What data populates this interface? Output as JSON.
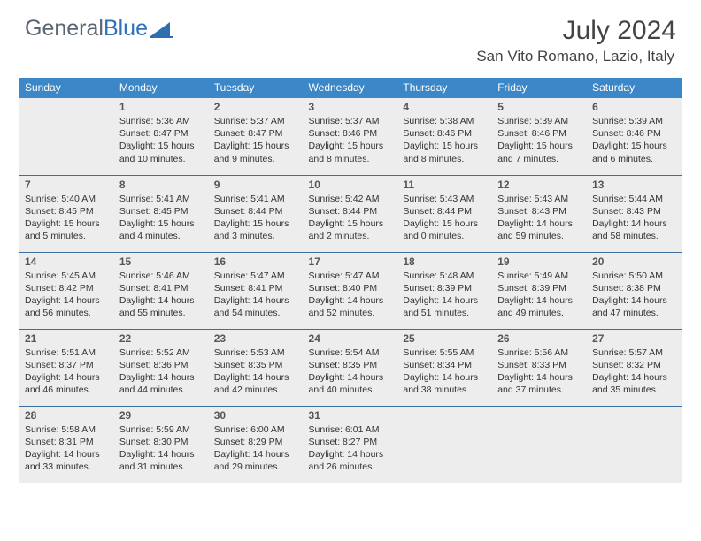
{
  "brand": {
    "part1": "General",
    "part2": "Blue"
  },
  "title": "July 2024",
  "location": "San Vito Romano, Lazio, Italy",
  "colors": {
    "header_bg": "#3c87c7",
    "header_text": "#ffffff",
    "cell_bg": "#ededed",
    "row_border": "#3c6fa0",
    "brand_gray": "#5a6673",
    "brand_blue": "#2f72b8",
    "logo_fill": "#2f6eb0"
  },
  "weekdays": [
    "Sunday",
    "Monday",
    "Tuesday",
    "Wednesday",
    "Thursday",
    "Friday",
    "Saturday"
  ],
  "weeks": [
    [
      null,
      {
        "d": "1",
        "sr": "5:36 AM",
        "ss": "8:47 PM",
        "dl": "15 hours and 10 minutes."
      },
      {
        "d": "2",
        "sr": "5:37 AM",
        "ss": "8:47 PM",
        "dl": "15 hours and 9 minutes."
      },
      {
        "d": "3",
        "sr": "5:37 AM",
        "ss": "8:46 PM",
        "dl": "15 hours and 8 minutes."
      },
      {
        "d": "4",
        "sr": "5:38 AM",
        "ss": "8:46 PM",
        "dl": "15 hours and 8 minutes."
      },
      {
        "d": "5",
        "sr": "5:39 AM",
        "ss": "8:46 PM",
        "dl": "15 hours and 7 minutes."
      },
      {
        "d": "6",
        "sr": "5:39 AM",
        "ss": "8:46 PM",
        "dl": "15 hours and 6 minutes."
      }
    ],
    [
      {
        "d": "7",
        "sr": "5:40 AM",
        "ss": "8:45 PM",
        "dl": "15 hours and 5 minutes."
      },
      {
        "d": "8",
        "sr": "5:41 AM",
        "ss": "8:45 PM",
        "dl": "15 hours and 4 minutes."
      },
      {
        "d": "9",
        "sr": "5:41 AM",
        "ss": "8:44 PM",
        "dl": "15 hours and 3 minutes."
      },
      {
        "d": "10",
        "sr": "5:42 AM",
        "ss": "8:44 PM",
        "dl": "15 hours and 2 minutes."
      },
      {
        "d": "11",
        "sr": "5:43 AM",
        "ss": "8:44 PM",
        "dl": "15 hours and 0 minutes."
      },
      {
        "d": "12",
        "sr": "5:43 AM",
        "ss": "8:43 PM",
        "dl": "14 hours and 59 minutes."
      },
      {
        "d": "13",
        "sr": "5:44 AM",
        "ss": "8:43 PM",
        "dl": "14 hours and 58 minutes."
      }
    ],
    [
      {
        "d": "14",
        "sr": "5:45 AM",
        "ss": "8:42 PM",
        "dl": "14 hours and 56 minutes."
      },
      {
        "d": "15",
        "sr": "5:46 AM",
        "ss": "8:41 PM",
        "dl": "14 hours and 55 minutes."
      },
      {
        "d": "16",
        "sr": "5:47 AM",
        "ss": "8:41 PM",
        "dl": "14 hours and 54 minutes."
      },
      {
        "d": "17",
        "sr": "5:47 AM",
        "ss": "8:40 PM",
        "dl": "14 hours and 52 minutes."
      },
      {
        "d": "18",
        "sr": "5:48 AM",
        "ss": "8:39 PM",
        "dl": "14 hours and 51 minutes."
      },
      {
        "d": "19",
        "sr": "5:49 AM",
        "ss": "8:39 PM",
        "dl": "14 hours and 49 minutes."
      },
      {
        "d": "20",
        "sr": "5:50 AM",
        "ss": "8:38 PM",
        "dl": "14 hours and 47 minutes."
      }
    ],
    [
      {
        "d": "21",
        "sr": "5:51 AM",
        "ss": "8:37 PM",
        "dl": "14 hours and 46 minutes."
      },
      {
        "d": "22",
        "sr": "5:52 AM",
        "ss": "8:36 PM",
        "dl": "14 hours and 44 minutes."
      },
      {
        "d": "23",
        "sr": "5:53 AM",
        "ss": "8:35 PM",
        "dl": "14 hours and 42 minutes."
      },
      {
        "d": "24",
        "sr": "5:54 AM",
        "ss": "8:35 PM",
        "dl": "14 hours and 40 minutes."
      },
      {
        "d": "25",
        "sr": "5:55 AM",
        "ss": "8:34 PM",
        "dl": "14 hours and 38 minutes."
      },
      {
        "d": "26",
        "sr": "5:56 AM",
        "ss": "8:33 PM",
        "dl": "14 hours and 37 minutes."
      },
      {
        "d": "27",
        "sr": "5:57 AM",
        "ss": "8:32 PM",
        "dl": "14 hours and 35 minutes."
      }
    ],
    [
      {
        "d": "28",
        "sr": "5:58 AM",
        "ss": "8:31 PM",
        "dl": "14 hours and 33 minutes."
      },
      {
        "d": "29",
        "sr": "5:59 AM",
        "ss": "8:30 PM",
        "dl": "14 hours and 31 minutes."
      },
      {
        "d": "30",
        "sr": "6:00 AM",
        "ss": "8:29 PM",
        "dl": "14 hours and 29 minutes."
      },
      {
        "d": "31",
        "sr": "6:01 AM",
        "ss": "8:27 PM",
        "dl": "14 hours and 26 minutes."
      },
      null,
      null,
      null
    ]
  ],
  "labels": {
    "sunrise": "Sunrise:",
    "sunset": "Sunset:",
    "daylight": "Daylight:"
  }
}
